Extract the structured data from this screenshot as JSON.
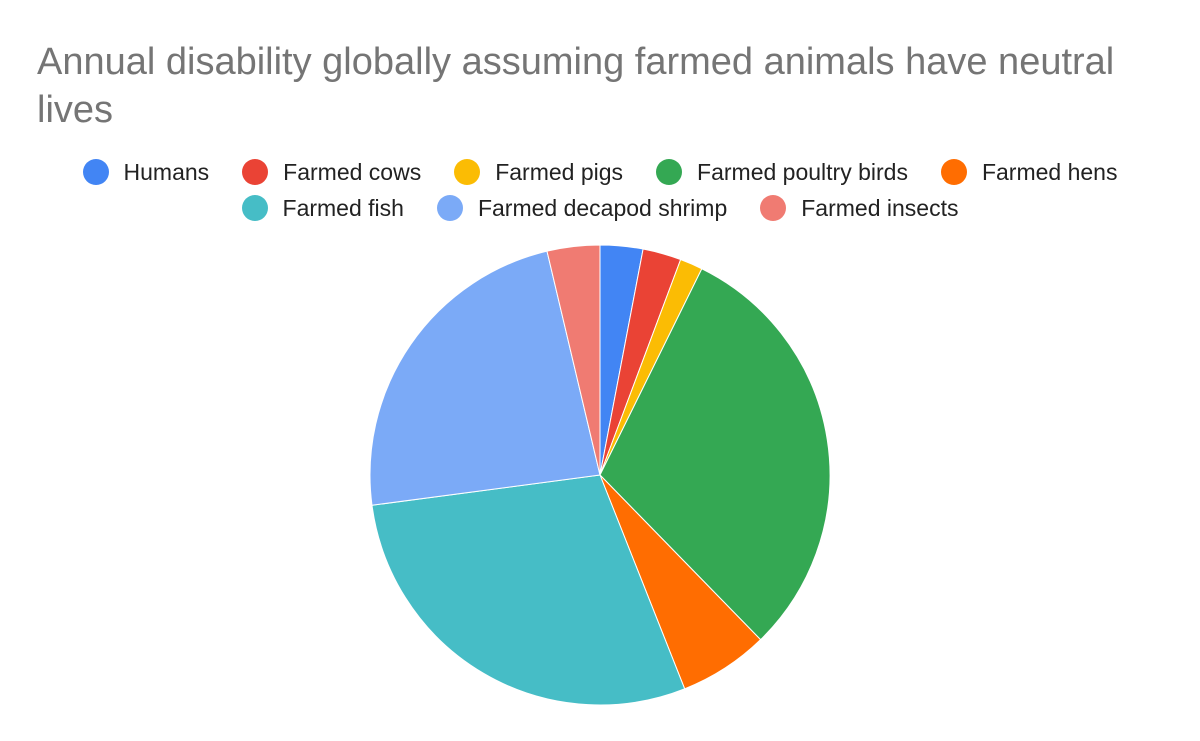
{
  "chart_data": {
    "type": "pie",
    "title": "Annual disability globally assuming farmed animals have neutral lives",
    "legend_position": "top",
    "labels": [
      "Humans",
      "Farmed cows",
      "Farmed pigs",
      "Farmed poultry birds",
      "Farmed hens",
      "Farmed fish",
      "Farmed decapod shrimp",
      "Farmed insects"
    ],
    "values": [
      3.0,
      2.7,
      1.6,
      30.4,
      6.3,
      28.9,
      23.4,
      3.7
    ],
    "colors": [
      "#4285f4",
      "#ea4335",
      "#fbbc04",
      "#34a853",
      "#ff6d01",
      "#46bdc6",
      "#7baaf7",
      "#f07b72"
    ]
  }
}
